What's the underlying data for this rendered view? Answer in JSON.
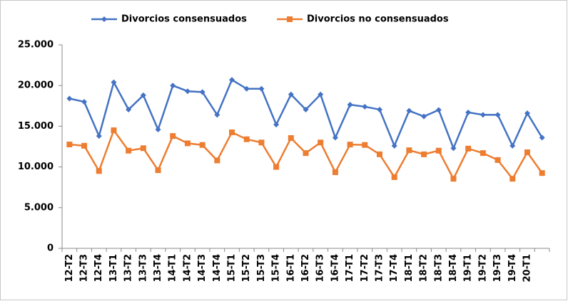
{
  "chart_data": {
    "type": "line",
    "categories": [
      "12-T2",
      "12-T3",
      "12-T4",
      "13-T1",
      "13-T2",
      "13-T3",
      "13-T4",
      "14-T1",
      "14-T2",
      "14-T3",
      "14-T4",
      "15-T1",
      "15-T2",
      "15-T3",
      "15-T4",
      "16-T1",
      "16-T2",
      "16-T3",
      "16-T4",
      "17-T1",
      "17-T2",
      "17-T3",
      "17-T4",
      "18-T1",
      "18-T2",
      "18-T3",
      "18-T4",
      "19-T1",
      "19-T2",
      "19-T3",
      "19-T4",
      "20-T1",
      null
    ],
    "series": [
      {
        "name": "Divorcios consensuados",
        "color": "#4472c4",
        "marker": "diamond",
        "values": [
          18400,
          18000,
          13800,
          20400,
          17050,
          18800,
          14600,
          20000,
          19300,
          19200,
          16400,
          20700,
          19600,
          19600,
          15200,
          18900,
          17050,
          18900,
          13600,
          17650,
          17400,
          17050,
          12600,
          16900,
          16200,
          17000,
          12300,
          16700,
          16400,
          16400,
          12600,
          16600,
          13600
        ]
      },
      {
        "name": "Divorcios no consensuados",
        "color": "#ed7d31",
        "marker": "square",
        "values": [
          12760,
          12600,
          9500,
          14500,
          12000,
          12300,
          9600,
          13800,
          12900,
          12700,
          10800,
          14250,
          13400,
          13000,
          10000,
          13550,
          11700,
          13000,
          9350,
          12750,
          12700,
          11550,
          8750,
          12050,
          11550,
          12000,
          8550,
          12250,
          11700,
          10850,
          8550,
          11800,
          9250
        ]
      }
    ],
    "ylim": [
      0,
      25000
    ],
    "yticks": [
      0,
      {
        "value": 5000,
        "label": "5.000"
      },
      {
        "value": 10000,
        "label": "10.000"
      },
      {
        "value": 15000,
        "label": "15.000"
      },
      {
        "value": 20000,
        "label": "20.000"
      },
      {
        "value": 25000,
        "label": "25.000"
      }
    ],
    "grid": false,
    "legend": "top"
  }
}
